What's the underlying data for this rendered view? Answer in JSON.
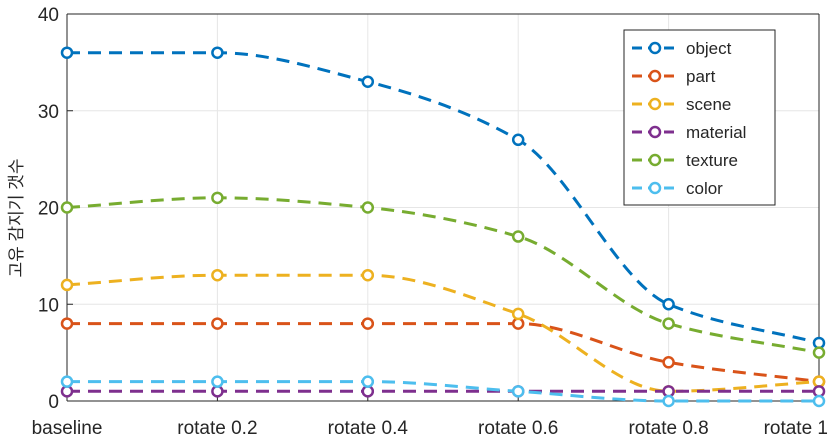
{
  "chart_data": {
    "type": "line",
    "title": "",
    "xlabel": "",
    "ylabel": "고유 감지기 갯수",
    "categories": [
      "baseline",
      "rotate 0.2",
      "rotate 0.4",
      "rotate 0.6",
      "rotate 0.8",
      "rotate 1"
    ],
    "ylim": [
      0,
      40
    ],
    "yticks": [
      "0",
      "10",
      "20",
      "30",
      "40"
    ],
    "grid": true,
    "legend_position": "top-right",
    "series": [
      {
        "name": "object",
        "color": "#0072BD",
        "values": [
          36,
          36,
          33,
          27,
          10,
          6
        ]
      },
      {
        "name": "part",
        "color": "#D95319",
        "values": [
          8,
          8,
          8,
          8,
          4,
          2
        ]
      },
      {
        "name": "scene",
        "color": "#EDB120",
        "values": [
          12,
          13,
          13,
          9,
          1,
          2
        ]
      },
      {
        "name": "material",
        "color": "#7E2F8E",
        "values": [
          1,
          1,
          1,
          1,
          1,
          1
        ]
      },
      {
        "name": "texture",
        "color": "#77AC30",
        "values": [
          20,
          21,
          20,
          17,
          8,
          5
        ]
      },
      {
        "name": "color",
        "color": "#4DBEEE",
        "values": [
          2,
          2,
          2,
          1,
          0,
          0
        ]
      }
    ]
  }
}
